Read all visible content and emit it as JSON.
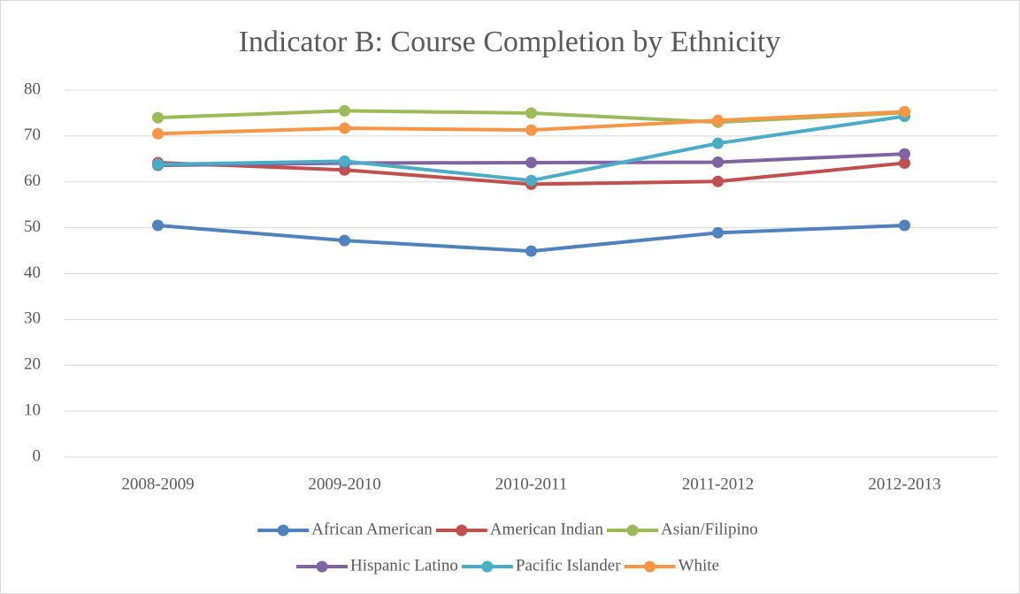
{
  "chart_data": {
    "type": "line",
    "title": "Indicator B: Course Completion by Ethnicity",
    "categories": [
      "2008-2009",
      "2009-2010",
      "2010-2011",
      "2011-2012",
      "2012-2013"
    ],
    "series": [
      {
        "name": "African American",
        "color": "#4f81bd",
        "values": [
          50.5,
          47.2,
          44.9,
          48.9,
          50.5
        ]
      },
      {
        "name": "American Indian",
        "color": "#c0504d",
        "values": [
          64.2,
          62.6,
          59.5,
          60.1,
          64.1
        ]
      },
      {
        "name": "Asian/Filipino",
        "color": "#9bbb59",
        "values": [
          74.0,
          75.5,
          75.0,
          73.0,
          75.1
        ]
      },
      {
        "name": "Hispanic Latino",
        "color": "#8064a2",
        "values": [
          63.6,
          64.1,
          64.2,
          64.3,
          66.1
        ]
      },
      {
        "name": "Pacific Islander",
        "color": "#4bacc6",
        "values": [
          63.8,
          64.5,
          60.3,
          68.4,
          74.3
        ]
      },
      {
        "name": "White",
        "color": "#f79646",
        "values": [
          70.5,
          71.7,
          71.3,
          73.4,
          75.3
        ]
      }
    ],
    "ylim": [
      0,
      80
    ],
    "yticks": [
      0,
      10,
      20,
      30,
      40,
      50,
      60,
      70,
      80
    ],
    "grid": true,
    "legend": "bottom"
  }
}
